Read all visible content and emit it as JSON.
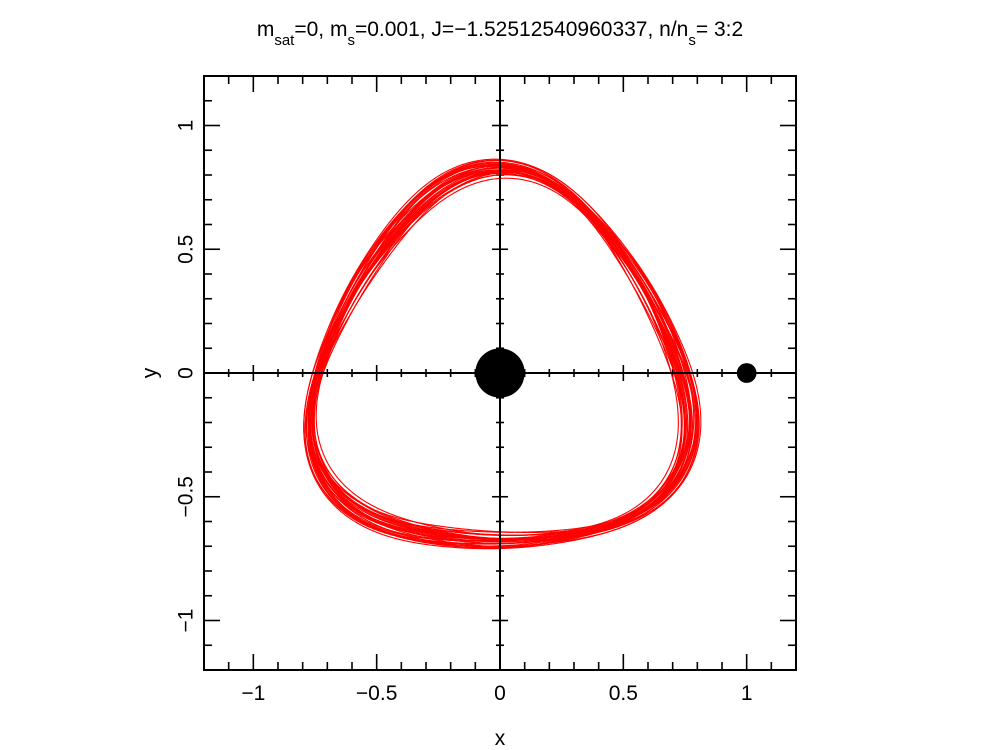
{
  "chart_data": {
    "type": "line",
    "title": {
      "parts": [
        {
          "text": "m",
          "sub": "sat"
        },
        {
          "text": "=0, m",
          "sub": "s"
        },
        {
          "text": "=0.001, J=−1.52512540960337, n/n",
          "sub": "s"
        },
        {
          "text": "= 3:2",
          "sub": ""
        }
      ]
    },
    "xlabel": "x",
    "ylabel": "y",
    "xlim": [
      -1.2,
      1.2
    ],
    "ylim": [
      -1.2,
      1.2
    ],
    "x_ticks": [
      {
        "value": -1,
        "label": "−1"
      },
      {
        "value": -0.5,
        "label": "−0.5"
      },
      {
        "value": 0,
        "label": "0"
      },
      {
        "value": 0.5,
        "label": "0.5"
      },
      {
        "value": 1,
        "label": "1"
      }
    ],
    "y_ticks": [
      {
        "value": -1,
        "label": "−1"
      },
      {
        "value": -0.5,
        "label": "−0.5"
      },
      {
        "value": 0,
        "label": "0"
      },
      {
        "value": 0.5,
        "label": "0.5"
      },
      {
        "value": 1,
        "label": "1"
      }
    ],
    "minor_tick_step": 0.1,
    "grid": false,
    "crosshair_axes": true,
    "bodies": [
      {
        "name": "primary",
        "x": 0,
        "y": 0,
        "radius": 0.1,
        "color": "#000000"
      },
      {
        "name": "secondary",
        "x": 1,
        "y": 0,
        "radius": 0.04,
        "color": "#000000"
      }
    ],
    "orbit": {
      "color": "#ff0000",
      "shape": "rounded-triangle",
      "base_radius": 0.745,
      "triangular_amplitude": 0.075,
      "lobe_angle_deg": 210,
      "loops": 30,
      "radius_spread": 0.055,
      "rotation_spread_deg": 7,
      "samples_per_loop": 720
    }
  }
}
